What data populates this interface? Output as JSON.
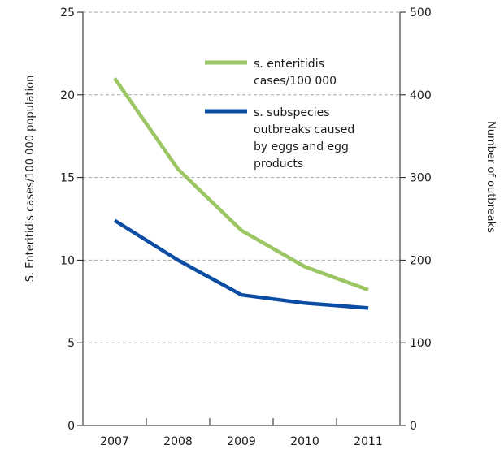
{
  "chart_data": {
    "type": "line",
    "categories": [
      "2007",
      "2008",
      "2009",
      "2010",
      "2011"
    ],
    "y_left": {
      "label": "S. Enteritidis cases/100 000 population",
      "range": [
        0,
        25
      ],
      "ticks": [
        0,
        5,
        10,
        15,
        20,
        25
      ]
    },
    "y_right": {
      "label": "Number of outbreaks",
      "range": [
        0,
        500
      ],
      "ticks": [
        0,
        100,
        200,
        300,
        400,
        500
      ]
    },
    "grid": true,
    "legend_position": "top-right",
    "series": [
      {
        "name_lines": [
          "s. enteritidis",
          "cases/100 000"
        ],
        "axis": "left",
        "color": "#9cc563",
        "values": [
          21.0,
          15.5,
          11.8,
          9.6,
          8.2
        ]
      },
      {
        "name_lines": [
          "s. subspecies",
          "outbreaks caused",
          "by eggs and egg",
          "products"
        ],
        "axis": "right",
        "color": "#0b4da2",
        "values": [
          248,
          200,
          158,
          148,
          142
        ]
      }
    ]
  }
}
